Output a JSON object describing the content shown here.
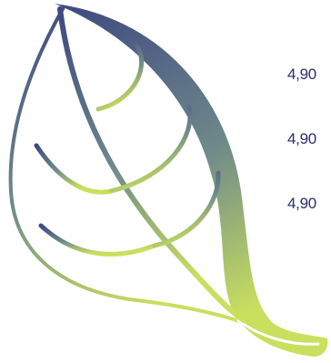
{
  "artwork": {
    "icon": "leaf-icon",
    "colors": {
      "top": "#3d4880",
      "middle": "#6f8a8a",
      "bottom": "#c9df5e"
    }
  },
  "prices": [
    {
      "value": "4,90"
    },
    {
      "value": "4,90"
    },
    {
      "value": "4,90"
    }
  ]
}
